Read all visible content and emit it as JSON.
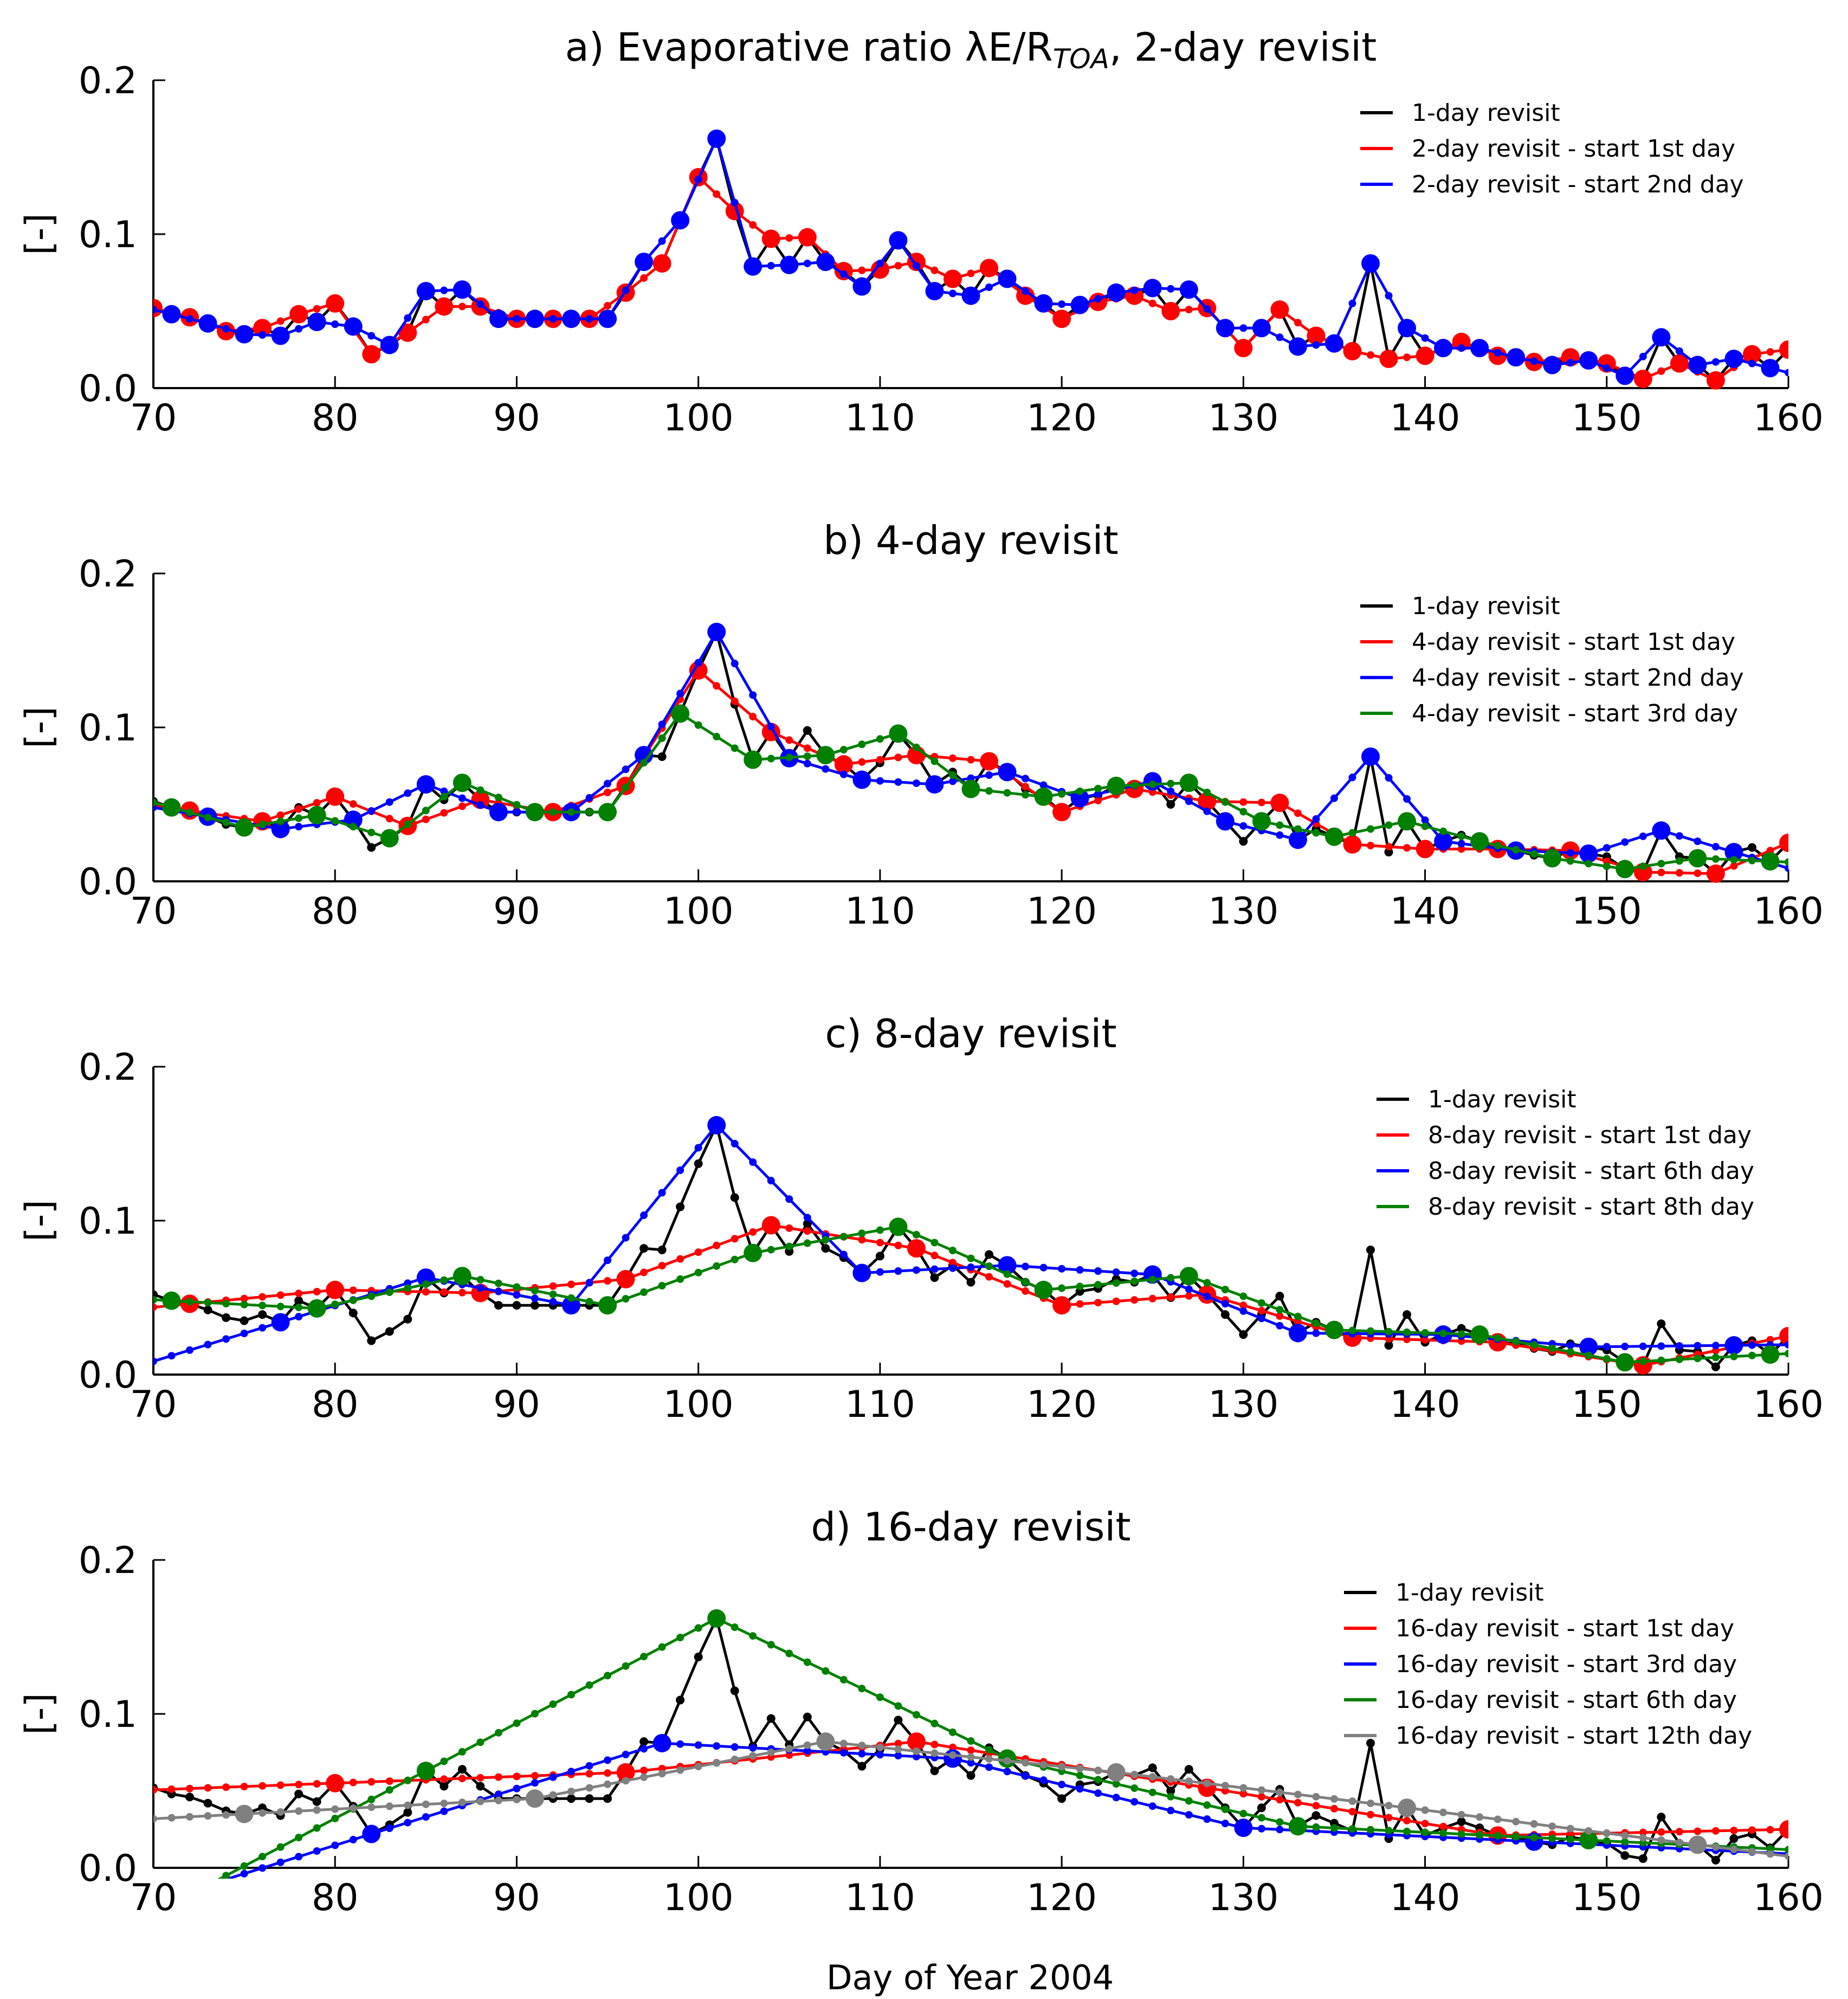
{
  "figure": {
    "xlabel": "Day of Year 2004"
  },
  "chart_data": [
    {
      "type": "line",
      "title": "a) Evaporative ratio λE/R",
      "title_subscript": "TOA",
      "title_suffix": ", 2-day revisit",
      "ylabel": "[-]",
      "xlim": [
        70,
        160
      ],
      "ylim": [
        0,
        0.2
      ],
      "xticks": [
        "70",
        "80",
        "90",
        "100",
        "110",
        "120",
        "130",
        "140",
        "150",
        "160"
      ],
      "yticks": [
        "0.0",
        "0.1",
        "0.2"
      ],
      "series": [
        {
          "name": "1-day revisit",
          "color": "#000000",
          "kind": "daily"
        },
        {
          "name": "2-day revisit - start 1st day",
          "color": "#ff0000",
          "kind": "sampled",
          "start": 70,
          "step": 2
        },
        {
          "name": "2-day revisit - start 2nd day",
          "color": "#0000ff",
          "kind": "sampled",
          "start": 71,
          "step": 2
        }
      ]
    },
    {
      "type": "line",
      "title": "b) 4-day revisit",
      "ylabel": "[-]",
      "xlim": [
        70,
        160
      ],
      "ylim": [
        0,
        0.2
      ],
      "xticks": [
        "70",
        "80",
        "90",
        "100",
        "110",
        "120",
        "130",
        "140",
        "150",
        "160"
      ],
      "yticks": [
        "0.0",
        "0.1",
        "0.2"
      ],
      "series": [
        {
          "name": "1-day revisit",
          "color": "#000000",
          "kind": "daily"
        },
        {
          "name": "4-day revisit - start 1st day",
          "color": "#ff0000",
          "kind": "sampled",
          "start": 72,
          "step": 4
        },
        {
          "name": "4-day revisit - start 2nd day",
          "color": "#0000ff",
          "kind": "sampled",
          "start": 73,
          "step": 4
        },
        {
          "name": "4-day revisit - start 3rd day",
          "color": "#008000",
          "kind": "sampled",
          "start": 71,
          "step": 4
        }
      ]
    },
    {
      "type": "line",
      "title": "c) 8-day revisit",
      "ylabel": "[-]",
      "xlim": [
        70,
        160
      ],
      "ylim": [
        0,
        0.2
      ],
      "xticks": [
        "70",
        "80",
        "90",
        "100",
        "110",
        "120",
        "130",
        "140",
        "150",
        "160"
      ],
      "yticks": [
        "0.0",
        "0.1",
        "0.2"
      ],
      "series": [
        {
          "name": "1-day revisit",
          "color": "#000000",
          "kind": "daily"
        },
        {
          "name": "8-day revisit - start 1st day",
          "color": "#ff0000",
          "kind": "sampled",
          "start": 72,
          "step": 8
        },
        {
          "name": "8-day revisit - start 6th day",
          "color": "#0000ff",
          "kind": "sampled",
          "start": 77,
          "step": 8
        },
        {
          "name": "8-day revisit - start 8th day",
          "color": "#008000",
          "kind": "sampled",
          "start": 71,
          "step": 8
        }
      ]
    },
    {
      "type": "line",
      "title": "d) 16-day revisit",
      "ylabel": "[-]",
      "xlim": [
        70,
        160
      ],
      "ylim": [
        0,
        0.2
      ],
      "xticks": [
        "70",
        "80",
        "90",
        "100",
        "110",
        "120",
        "130",
        "140",
        "150",
        "160"
      ],
      "yticks": [
        "0.0",
        "0.1",
        "0.2"
      ],
      "series": [
        {
          "name": "1-day revisit",
          "color": "#000000",
          "kind": "daily"
        },
        {
          "name": "16-day revisit - start 1st day",
          "color": "#ff0000",
          "kind": "sampled",
          "start": 64,
          "step": 16
        },
        {
          "name": "16-day revisit - start 3rd day",
          "color": "#0000ff",
          "kind": "sampled",
          "start": 66,
          "step": 16
        },
        {
          "name": "16-day revisit - start 6th day",
          "color": "#008000",
          "kind": "sampled",
          "start": 69,
          "step": 16
        },
        {
          "name": "16-day revisit - start 12th day",
          "color": "#808080",
          "kind": "sampled",
          "start": 75,
          "step": 16
        }
      ]
    }
  ],
  "daily_series": {
    "name": "1-day revisit",
    "x_start": 70,
    "values": [
      0.052,
      0.048,
      0.046,
      0.042,
      0.037,
      0.035,
      0.039,
      0.034,
      0.048,
      0.043,
      0.055,
      0.04,
      0.022,
      0.028,
      0.036,
      0.063,
      0.053,
      0.064,
      0.053,
      0.045,
      0.045,
      0.045,
      0.045,
      0.045,
      0.045,
      0.045,
      0.062,
      0.082,
      0.081,
      0.109,
      0.137,
      0.162,
      0.115,
      0.079,
      0.097,
      0.08,
      0.098,
      0.082,
      0.076,
      0.066,
      0.077,
      0.096,
      0.082,
      0.063,
      0.071,
      0.06,
      0.078,
      0.071,
      0.06,
      0.055,
      0.045,
      0.054,
      0.056,
      0.062,
      0.06,
      0.065,
      0.05,
      0.064,
      0.052,
      0.039,
      0.026,
      0.039,
      0.051,
      0.027,
      0.034,
      0.029,
      0.024,
      0.081,
      0.019,
      0.039,
      0.021,
      0.026,
      0.03,
      0.026,
      0.021,
      0.02,
      0.017,
      0.015,
      0.02,
      0.018,
      0.016,
      0.008,
      0.006,
      0.033,
      0.016,
      0.015,
      0.005,
      0.019,
      0.022,
      0.013,
      0.025
    ],
    "extra_points": [
      [
        123,
        0.063
      ],
      [
        143,
        0.026
      ]
    ]
  }
}
